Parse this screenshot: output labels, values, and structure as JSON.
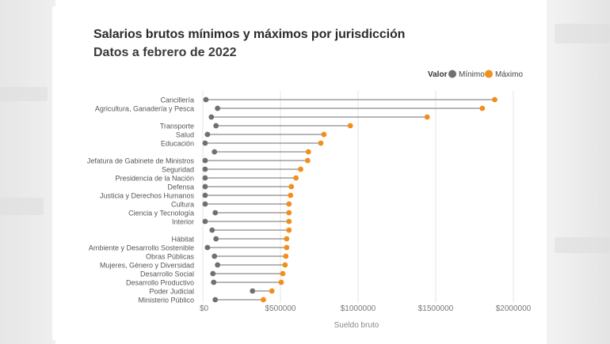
{
  "title": "Salarios brutos mínimos y máximos por jurisdicción",
  "subtitle": "Datos a febrero de 2022",
  "legend": {
    "title": "Valor",
    "items": [
      {
        "label": "Mínimo",
        "color": "#707070"
      },
      {
        "label": "Máximo",
        "color": "#f28e1c"
      }
    ]
  },
  "chart_data": {
    "type": "dumbbell",
    "title": "Salarios brutos mínimos y máximos por jurisdicción",
    "subtitle": "Datos a febrero de 2022",
    "xlabel": "Sueldo bruto",
    "ylabel": "",
    "xlim": [
      0,
      2000000
    ],
    "xticks": [
      0,
      500000,
      1000000,
      1500000,
      2000000
    ],
    "xtick_labels": [
      "$0",
      "$500000",
      "$1000000",
      "$1500000",
      "$2000000"
    ],
    "grid": true,
    "series": [
      {
        "name": "Mínimo",
        "color": "#707070"
      },
      {
        "name": "Máximo",
        "color": "#f28e1c"
      }
    ],
    "rows": [
      {
        "label": "Cancillería",
        "min": 20000,
        "max": 1880000
      },
      {
        "label": "Agricultura, Ganadería y Pesca",
        "min": 95000,
        "max": 1800000
      },
      {
        "label": "",
        "min": 55000,
        "max": 1445000
      },
      {
        "label": "Transporte",
        "min": 85000,
        "max": 950000
      },
      {
        "label": "Salud",
        "min": 30000,
        "max": 780000
      },
      {
        "label": "Educación",
        "min": 15000,
        "max": 760000
      },
      {
        "label": "",
        "min": 75000,
        "max": 680000
      },
      {
        "label": "Jefatura de Gabinete de Ministros",
        "min": 15000,
        "max": 675000
      },
      {
        "label": "Seguridad",
        "min": 15000,
        "max": 630000
      },
      {
        "label": "Presidencia de la Nación",
        "min": 15000,
        "max": 600000
      },
      {
        "label": "Defensa",
        "min": 15000,
        "max": 570000
      },
      {
        "label": "Justicia y Derechos Humanos",
        "min": 15000,
        "max": 565000
      },
      {
        "label": "Cultura",
        "min": 15000,
        "max": 555000
      },
      {
        "label": "Ciencia y Tecnología",
        "min": 80000,
        "max": 555000
      },
      {
        "label": "Interior",
        "min": 15000,
        "max": 555000
      },
      {
        "label": "",
        "min": 60000,
        "max": 555000
      },
      {
        "label": "Hábitat",
        "min": 85000,
        "max": 540000
      },
      {
        "label": "Ambiente y Desarrollo Sostenible",
        "min": 30000,
        "max": 540000
      },
      {
        "label": "Obras Públicas",
        "min": 75000,
        "max": 535000
      },
      {
        "label": "Mujeres, Género y Diversidad",
        "min": 95000,
        "max": 530000
      },
      {
        "label": "Desarrollo Social",
        "min": 65000,
        "max": 515000
      },
      {
        "label": "Desarrollo Productivo",
        "min": 70000,
        "max": 505000
      },
      {
        "label": "Poder Judicial",
        "min": 320000,
        "max": 445000
      },
      {
        "label": "Ministerio Público",
        "min": 80000,
        "max": 390000
      }
    ]
  }
}
